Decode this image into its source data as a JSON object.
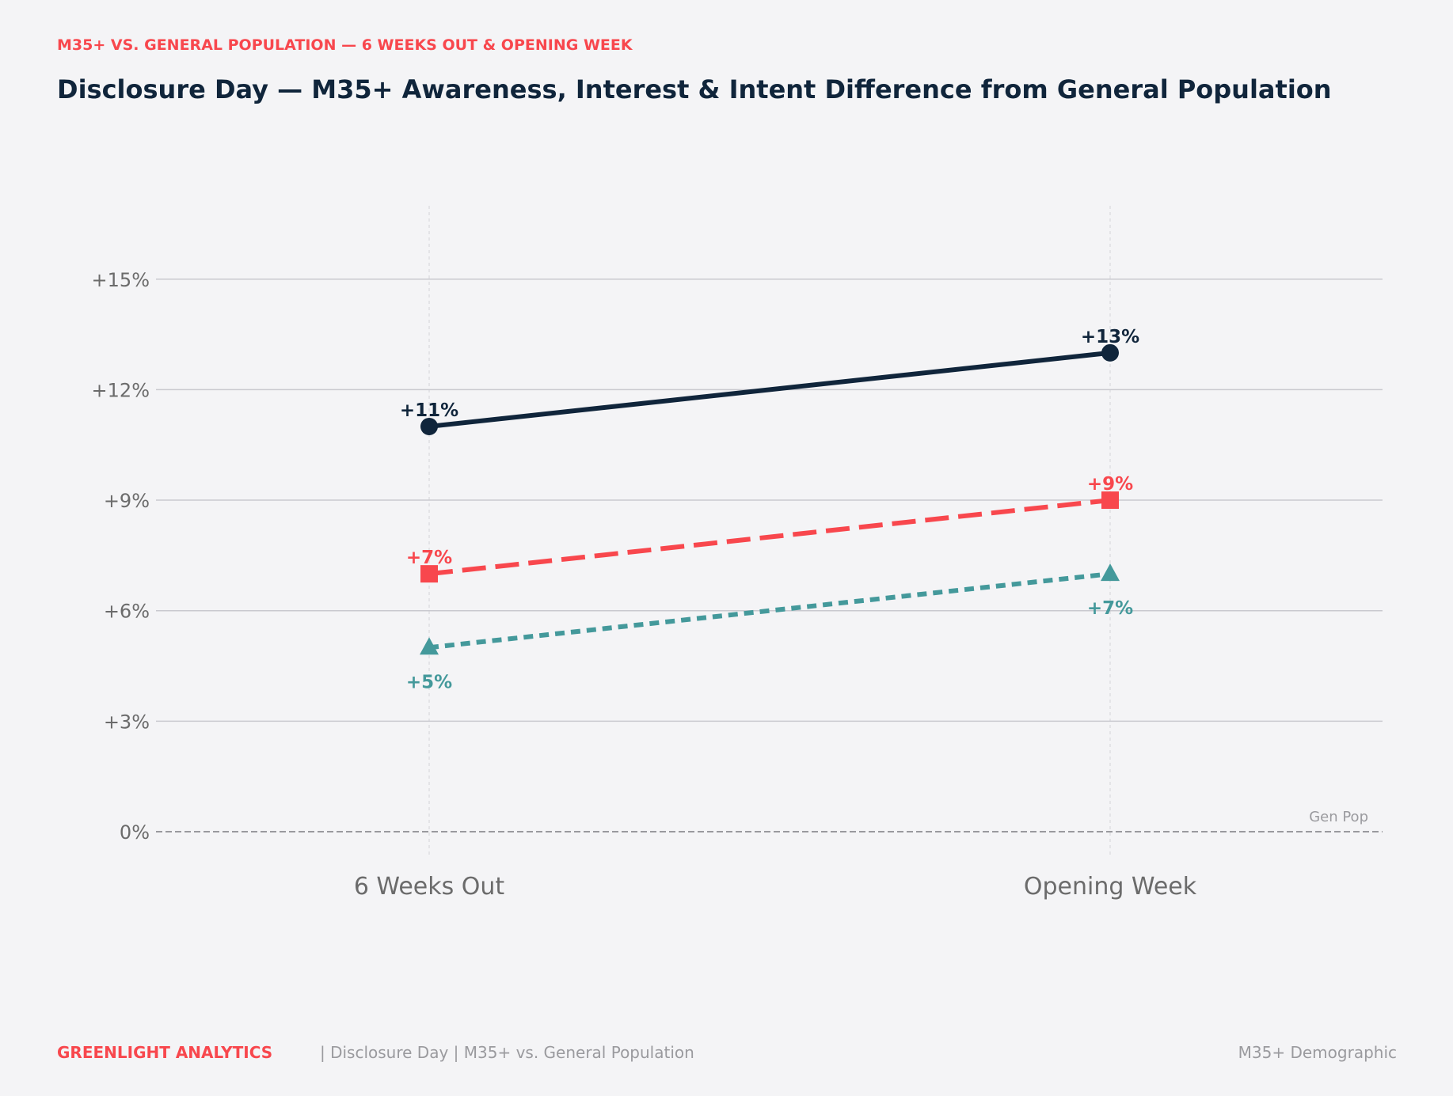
{
  "kicker": "M35+ VS. GENERAL POPULATION — 6 WEEKS OUT & OPENING WEEK",
  "footer": {
    "brand": "GREENLIGHT ANALYTICS",
    "meta": "|  Disclosure Day  |  M35+ vs. General Population",
    "right": "M35+ Demographic"
  },
  "colors": {
    "background": "#f4f4f6",
    "navy": "#10253b",
    "red": "#f8474d",
    "teal": "#44999b",
    "grid": "#c9c9cf",
    "muted_text": "#6b6b6b",
    "footer_text": "#9a9a9e"
  },
  "chart_data": {
    "type": "line",
    "title": "Disclosure Day — M35+ Awareness, Interest & Intent Difference from General Population",
    "categories": [
      "6 Weeks Out",
      "Opening Week"
    ],
    "y_ticks": [
      0,
      3,
      6,
      9,
      12,
      15
    ],
    "y_tick_labels": [
      "0%",
      "+3%",
      "+6%",
      "+9%",
      "+12%",
      "+15%"
    ],
    "ylim": [
      -1,
      17
    ],
    "grid": true,
    "baseline": {
      "value": 0,
      "label": "Gen Pop"
    },
    "series": [
      {
        "values": [
          11,
          13
        ],
        "labels": [
          "+11%",
          "+13%"
        ],
        "color": "#10253b",
        "marker": "circle",
        "dash": "solid",
        "label_position": "above"
      },
      {
        "values": [
          7,
          9
        ],
        "labels": [
          "+7%",
          "+9%"
        ],
        "color": "#f8474d",
        "marker": "square",
        "dash": "dashed",
        "label_position": "above"
      },
      {
        "values": [
          5,
          7
        ],
        "labels": [
          "+5%",
          "+7%"
        ],
        "color": "#44999b",
        "marker": "triangle",
        "dash": "dotted",
        "label_position": "below"
      }
    ]
  }
}
